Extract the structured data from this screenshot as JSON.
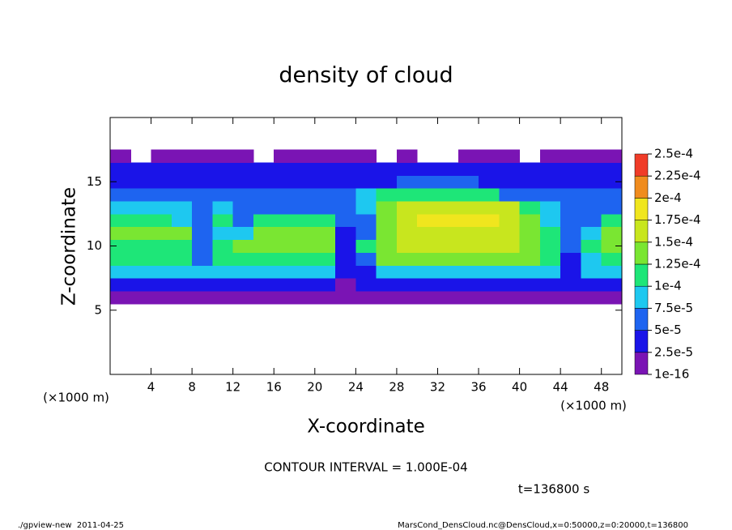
{
  "chart_data": {
    "type": "heatmap",
    "title": "density of cloud",
    "x_label": "X-coordinate",
    "y_label": "Z-coordinate",
    "x_unit_labels": [
      "(×1000 m)",
      "(×1000 m)"
    ],
    "contour_note": "CONTOUR INTERVAL = 1.000E-04",
    "time_note": "t=136800 s",
    "footer_left": "./gpview-new  2011-04-25",
    "footer_right": "MarsCond_DensCloud.nc@DensCloud,x=0:50000,z=0:20000,t=136800",
    "xlim": [
      0,
      50
    ],
    "ylim": [
      0,
      20
    ],
    "xticks": [
      4,
      8,
      12,
      16,
      20,
      24,
      28,
      32,
      36,
      40,
      44,
      48
    ],
    "yticks": [
      5,
      10,
      15
    ],
    "x": [
      1,
      3,
      5,
      7,
      9,
      11,
      13,
      15,
      17,
      19,
      21,
      23,
      25,
      27,
      29,
      31,
      33,
      35,
      37,
      39,
      41,
      43,
      45,
      47,
      49
    ],
    "y": [
      6,
      7,
      8,
      9,
      10,
      11,
      12,
      13,
      14,
      15,
      16,
      17
    ],
    "z": [
      [
        1e-05,
        1e-05,
        1e-05,
        1e-05,
        1e-05,
        1e-05,
        1e-05,
        1e-05,
        1e-05,
        1e-05,
        1e-05,
        1e-05,
        1e-05,
        1e-05,
        1e-05,
        1e-05,
        1e-05,
        1e-05,
        1e-05,
        1e-05,
        1e-05,
        1e-05,
        1e-05,
        1e-05,
        1e-05
      ],
      [
        3e-05,
        3e-05,
        3e-05,
        3e-05,
        3e-05,
        3e-05,
        3e-05,
        3e-05,
        3e-05,
        3e-05,
        3e-05,
        1e-05,
        3e-05,
        3e-05,
        3e-05,
        3e-05,
        3e-05,
        3e-05,
        3e-05,
        3e-05,
        3e-05,
        3e-05,
        3e-05,
        3e-05,
        3e-05
      ],
      [
        8e-05,
        8e-05,
        8e-05,
        8e-05,
        8e-05,
        8e-05,
        8e-05,
        8e-05,
        8e-05,
        8e-05,
        8e-05,
        3e-05,
        3e-05,
        8e-05,
        8e-05,
        8e-05,
        8e-05,
        8e-05,
        8e-05,
        8e-05,
        8e-05,
        8e-05,
        3e-05,
        8e-05,
        8e-05
      ],
      [
        0.00011,
        0.00011,
        0.00011,
        0.00011,
        6e-05,
        0.00012,
        0.00012,
        0.00012,
        0.00012,
        0.00012,
        0.00012,
        4e-05,
        6e-05,
        0.00013,
        0.00013,
        0.00013,
        0.00013,
        0.00013,
        0.00013,
        0.00013,
        0.00013,
        0.00011,
        4e-05,
        9e-05,
        0.00011
      ],
      [
        0.00012,
        0.00012,
        0.00012,
        0.00012,
        7e-05,
        0.00011,
        0.00013,
        0.00013,
        0.00013,
        0.00013,
        0.00013,
        3e-05,
        0.00011,
        0.00014,
        0.00015,
        0.00015,
        0.00015,
        0.00015,
        0.00015,
        0.00015,
        0.00014,
        0.00012,
        5e-05,
        0.0001,
        0.00013
      ],
      [
        0.00013,
        0.00013,
        0.00013,
        0.00013,
        6e-05,
        8e-05,
        9e-05,
        0.00013,
        0.00013,
        0.00013,
        0.00013,
        4e-05,
        6e-05,
        0.00014,
        0.00016,
        0.00016,
        0.00016,
        0.00016,
        0.00016,
        0.00015,
        0.00014,
        0.00011,
        5e-05,
        8e-05,
        0.00013
      ],
      [
        0.00012,
        0.00012,
        0.00012,
        9e-05,
        6e-05,
        0.0001,
        7e-05,
        0.00012,
        0.00012,
        0.00012,
        0.00012,
        6e-05,
        7e-05,
        0.00014,
        0.00016,
        0.00018,
        0.00018,
        0.00018,
        0.00018,
        0.00016,
        0.00014,
        9e-05,
        5e-05,
        6e-05,
        0.00011
      ],
      [
        8e-05,
        8e-05,
        8e-05,
        8e-05,
        6e-05,
        9e-05,
        7e-05,
        7e-05,
        7e-05,
        7e-05,
        7e-05,
        6e-05,
        9e-05,
        0.00013,
        0.00015,
        0.00015,
        0.00015,
        0.00015,
        0.00015,
        0.00015,
        0.00012,
        8e-05,
        6e-05,
        6e-05,
        7e-05
      ],
      [
        5e-05,
        5e-05,
        5e-05,
        5e-05,
        5e-05,
        5e-05,
        5e-05,
        5e-05,
        5e-05,
        5e-05,
        5e-05,
        5e-05,
        8e-05,
        0.00011,
        0.00011,
        0.00011,
        0.00011,
        0.00011,
        0.00011,
        5e-05,
        5e-05,
        5e-05,
        5e-05,
        5e-05,
        5e-05
      ],
      [
        4e-05,
        4e-05,
        4e-05,
        4e-05,
        4e-05,
        4e-05,
        4e-05,
        4e-05,
        4e-05,
        4e-05,
        4e-05,
        4e-05,
        4e-05,
        4e-05,
        7e-05,
        7e-05,
        7e-05,
        7e-05,
        4e-05,
        4e-05,
        4e-05,
        4e-05,
        4e-05,
        4e-05,
        4e-05
      ],
      [
        3e-05,
        3e-05,
        3e-05,
        3e-05,
        3e-05,
        3e-05,
        3e-05,
        3e-05,
        3e-05,
        3e-05,
        3e-05,
        3e-05,
        3e-05,
        3e-05,
        3e-05,
        3e-05,
        3e-05,
        3e-05,
        3e-05,
        3e-05,
        3e-05,
        3e-05,
        3e-05,
        3e-05,
        3e-05
      ],
      [
        1e-05,
        null,
        1e-05,
        1e-05,
        1e-05,
        1e-05,
        1e-05,
        null,
        1e-05,
        1e-05,
        1e-05,
        1e-05,
        1e-05,
        null,
        1e-05,
        null,
        null,
        1e-05,
        1e-05,
        1e-05,
        null,
        1e-05,
        1e-05,
        1e-05,
        1e-05
      ]
    ],
    "levels": [
      1e-16,
      {
        "value": 2.5e-05,
        "label": "2.5e-5"
      },
      {
        "value": 5e-05,
        "label": "5e-5"
      },
      {
        "value": 7.5e-05,
        "label": "7.5e-5"
      },
      {
        "value": 0.0001,
        "label": "1e-4"
      },
      {
        "value": 0.000125,
        "label": "1.25e-4"
      },
      {
        "value": 0.00015,
        "label": "1.5e-4"
      },
      {
        "value": 0.000175,
        "label": "1.75e-4"
      },
      {
        "value": 0.0002,
        "label": "2e-4"
      },
      {
        "value": 0.000225,
        "label": "2.25e-4"
      },
      {
        "value": 0.00025,
        "label": "2.5e-4"
      }
    ],
    "colors": [
      "#7a14b4",
      "#1a14e8",
      "#1e64f0",
      "#1ec8f0",
      "#1ee678",
      "#7ae632",
      "#c8e61e",
      "#f0e61e",
      "#f08c1e",
      "#f03c28"
    ]
  }
}
